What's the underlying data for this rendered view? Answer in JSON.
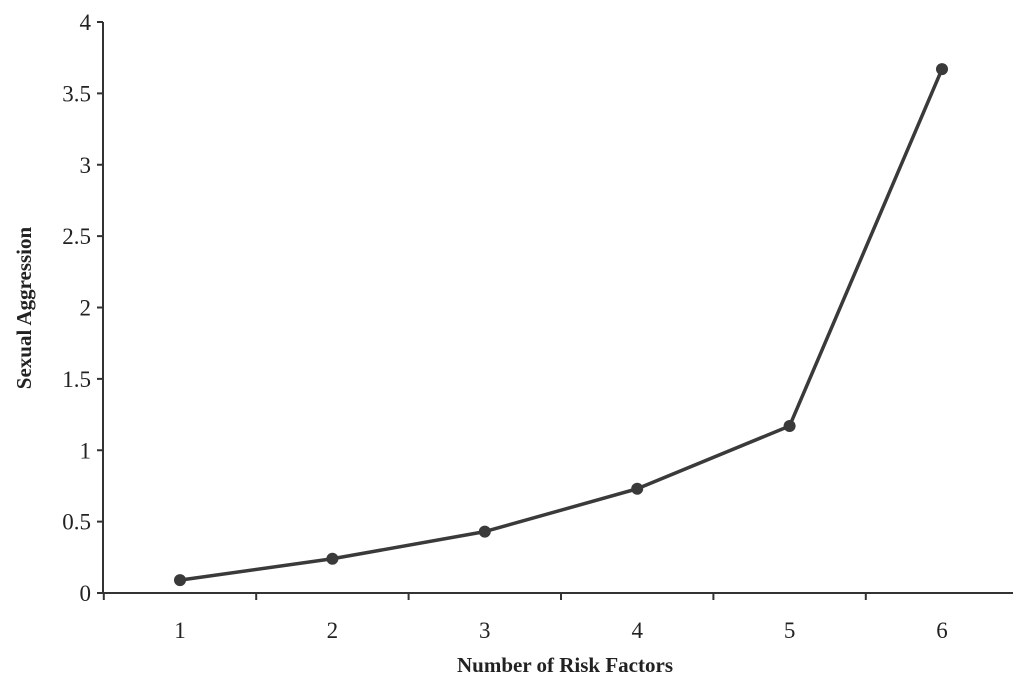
{
  "chart_data": {
    "type": "line",
    "title": "",
    "xlabel": "Number of Risk Factors",
    "ylabel": "Sexual Aggression",
    "x": [
      1,
      2,
      3,
      4,
      5,
      6
    ],
    "series": [
      {
        "values": [
          0.09,
          0.24,
          0.43,
          0.73,
          1.17,
          3.67
        ]
      }
    ],
    "x_ticks": [
      "1",
      "2",
      "3",
      "4",
      "5",
      "6"
    ],
    "y_ticks": [
      "0",
      "0.5",
      "1",
      "1.5",
      "2",
      "2.5",
      "3",
      "3.5",
      "4"
    ],
    "ylim": [
      0,
      4
    ],
    "grid": false,
    "legend": "none",
    "line_color": "#3a3a3a",
    "marker_color": "#3a3a3a"
  }
}
